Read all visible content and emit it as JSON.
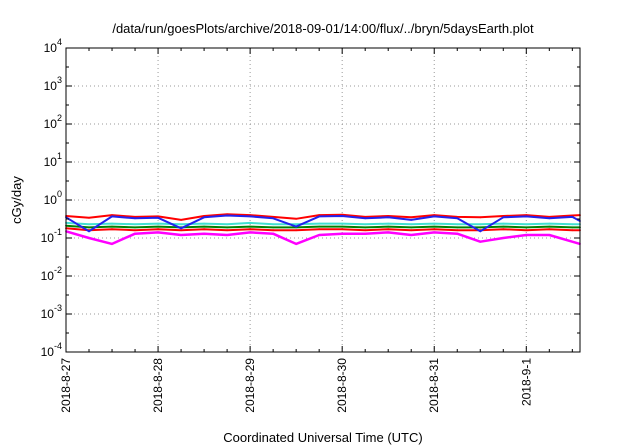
{
  "chart_data": {
    "type": "line",
    "title": "/data/run/goesPlots/archive/2018-09-01/14:00/flux/../bryn/5daysEarth.plot",
    "xlabel": "Coordinated Universal Time (UTC)",
    "ylabel": "cGy/day",
    "yscale": "log",
    "ylim": [
      0.0001,
      10000
    ],
    "xlim": [
      "2018-08-27 00:00",
      "2018-09-01 14:00"
    ],
    "grid": true,
    "legend": "none",
    "x_ticks": [
      "2018-8-27",
      "2018-8-28",
      "2018-8-29",
      "2018-8-30",
      "2018-8-31",
      "2018-9-1"
    ],
    "y_ticks": [
      {
        "base": "10",
        "exp": "-4",
        "value": 0.0001
      },
      {
        "base": "10",
        "exp": "-3",
        "value": 0.001
      },
      {
        "base": "10",
        "exp": "-2",
        "value": 0.01
      },
      {
        "base": "10",
        "exp": "-1",
        "value": 0.1
      },
      {
        "base": "10",
        "exp": "0",
        "value": 1
      },
      {
        "base": "10",
        "exp": "1",
        "value": 10
      },
      {
        "base": "10",
        "exp": "2",
        "value": 100
      },
      {
        "base": "10",
        "exp": "3",
        "value": 1000
      },
      {
        "base": "10",
        "exp": "4",
        "value": 10000
      }
    ],
    "series": [
      {
        "color": "#ff00ff",
        "x": [
          "2018-08-27 00:00",
          "2018-08-27 06:00",
          "2018-08-27 12:00",
          "2018-08-27 18:00",
          "2018-08-28 00:00",
          "2018-08-28 06:00",
          "2018-08-28 12:00",
          "2018-08-28 18:00",
          "2018-08-29 00:00",
          "2018-08-29 06:00",
          "2018-08-29 12:00",
          "2018-08-29 18:00",
          "2018-08-30 00:00",
          "2018-08-30 06:00",
          "2018-08-30 12:00",
          "2018-08-30 18:00",
          "2018-08-31 00:00",
          "2018-08-31 06:00",
          "2018-08-31 12:00",
          "2018-08-31 18:00",
          "2018-09-01 00:00",
          "2018-09-01 06:00",
          "2018-09-01 12:00",
          "2018-09-01 14:00"
        ],
        "values": [
          0.15,
          0.1,
          0.07,
          0.13,
          0.14,
          0.12,
          0.13,
          0.12,
          0.14,
          0.13,
          0.07,
          0.12,
          0.13,
          0.13,
          0.14,
          0.12,
          0.14,
          0.13,
          0.08,
          0.1,
          0.12,
          0.12,
          0.08,
          0.07
        ]
      },
      {
        "color": "#ff0000",
        "x": [
          "2018-08-27 00:00",
          "2018-08-27 06:00",
          "2018-08-27 12:00",
          "2018-08-27 18:00",
          "2018-08-28 00:00",
          "2018-08-28 06:00",
          "2018-08-28 12:00",
          "2018-08-28 18:00",
          "2018-08-29 00:00",
          "2018-08-29 06:00",
          "2018-08-29 12:00",
          "2018-08-29 18:00",
          "2018-08-30 00:00",
          "2018-08-30 06:00",
          "2018-08-30 12:00",
          "2018-08-30 18:00",
          "2018-08-31 00:00",
          "2018-08-31 06:00",
          "2018-08-31 12:00",
          "2018-08-31 18:00",
          "2018-09-01 00:00",
          "2018-09-01 06:00",
          "2018-09-01 12:00",
          "2018-09-01 14:00"
        ],
        "values": [
          0.18,
          0.16,
          0.17,
          0.16,
          0.17,
          0.16,
          0.17,
          0.16,
          0.17,
          0.16,
          0.16,
          0.17,
          0.17,
          0.16,
          0.17,
          0.16,
          0.17,
          0.16,
          0.16,
          0.17,
          0.16,
          0.17,
          0.16,
          0.16
        ]
      },
      {
        "color": "#008000",
        "x": [
          "2018-08-27 00:00",
          "2018-08-27 06:00",
          "2018-08-27 12:00",
          "2018-08-27 18:00",
          "2018-08-28 00:00",
          "2018-08-28 06:00",
          "2018-08-28 12:00",
          "2018-08-28 18:00",
          "2018-08-29 00:00",
          "2018-08-29 06:00",
          "2018-08-29 12:00",
          "2018-08-29 18:00",
          "2018-08-30 00:00",
          "2018-08-30 06:00",
          "2018-08-30 12:00",
          "2018-08-30 18:00",
          "2018-08-31 00:00",
          "2018-08-31 06:00",
          "2018-08-31 12:00",
          "2018-08-31 18:00",
          "2018-09-01 00:00",
          "2018-09-01 06:00",
          "2018-09-01 12:00",
          "2018-09-01 14:00"
        ],
        "values": [
          0.21,
          0.19,
          0.2,
          0.19,
          0.2,
          0.19,
          0.2,
          0.19,
          0.2,
          0.19,
          0.19,
          0.2,
          0.2,
          0.19,
          0.2,
          0.19,
          0.2,
          0.19,
          0.19,
          0.2,
          0.19,
          0.2,
          0.19,
          0.19
        ]
      },
      {
        "color": "#40e0d0",
        "x": [
          "2018-08-27 00:00",
          "2018-08-27 06:00",
          "2018-08-27 12:00",
          "2018-08-27 18:00",
          "2018-08-28 00:00",
          "2018-08-28 06:00",
          "2018-08-28 12:00",
          "2018-08-28 18:00",
          "2018-08-29 00:00",
          "2018-08-29 06:00",
          "2018-08-29 12:00",
          "2018-08-29 18:00",
          "2018-08-30 00:00",
          "2018-08-30 06:00",
          "2018-08-30 12:00",
          "2018-08-30 18:00",
          "2018-08-31 00:00",
          "2018-08-31 06:00",
          "2018-08-31 12:00",
          "2018-08-31 18:00",
          "2018-09-01 00:00",
          "2018-09-01 06:00",
          "2018-09-01 12:00",
          "2018-09-01 14:00"
        ],
        "values": [
          0.25,
          0.23,
          0.24,
          0.23,
          0.24,
          0.23,
          0.24,
          0.23,
          0.25,
          0.23,
          0.23,
          0.24,
          0.24,
          0.23,
          0.24,
          0.23,
          0.24,
          0.23,
          0.23,
          0.24,
          0.23,
          0.24,
          0.23,
          0.23
        ]
      },
      {
        "color": "#ff0000",
        "x": [
          "2018-08-27 00:00",
          "2018-08-27 06:00",
          "2018-08-27 12:00",
          "2018-08-27 18:00",
          "2018-08-28 00:00",
          "2018-08-28 06:00",
          "2018-08-28 12:00",
          "2018-08-28 18:00",
          "2018-08-29 00:00",
          "2018-08-29 06:00",
          "2018-08-29 12:00",
          "2018-08-29 18:00",
          "2018-08-30 00:00",
          "2018-08-30 06:00",
          "2018-08-30 12:00",
          "2018-08-30 18:00",
          "2018-08-31 00:00",
          "2018-08-31 06:00",
          "2018-08-31 12:00",
          "2018-08-31 18:00",
          "2018-09-01 00:00",
          "2018-09-01 06:00",
          "2018-09-01 12:00",
          "2018-09-01 14:00"
        ],
        "values": [
          0.38,
          0.34,
          0.4,
          0.36,
          0.37,
          0.3,
          0.38,
          0.42,
          0.4,
          0.36,
          0.32,
          0.4,
          0.41,
          0.36,
          0.38,
          0.35,
          0.4,
          0.36,
          0.35,
          0.38,
          0.4,
          0.36,
          0.39,
          0.4
        ]
      },
      {
        "color": "#2222ee",
        "x": [
          "2018-08-27 00:00",
          "2018-08-27 06:00",
          "2018-08-27 12:00",
          "2018-08-27 18:00",
          "2018-08-28 00:00",
          "2018-08-28 06:00",
          "2018-08-28 12:00",
          "2018-08-28 18:00",
          "2018-08-29 00:00",
          "2018-08-29 06:00",
          "2018-08-29 12:00",
          "2018-08-29 18:00",
          "2018-08-30 00:00",
          "2018-08-30 06:00",
          "2018-08-30 12:00",
          "2018-08-30 18:00",
          "2018-08-31 00:00",
          "2018-08-31 06:00",
          "2018-08-31 12:00",
          "2018-08-31 18:00",
          "2018-09-01 00:00",
          "2018-09-01 06:00",
          "2018-09-01 12:00",
          "2018-09-01 14:00"
        ],
        "values": [
          0.35,
          0.15,
          0.37,
          0.33,
          0.34,
          0.18,
          0.35,
          0.39,
          0.37,
          0.33,
          0.2,
          0.37,
          0.38,
          0.33,
          0.35,
          0.3,
          0.37,
          0.33,
          0.15,
          0.35,
          0.37,
          0.33,
          0.36,
          0.28
        ]
      }
    ]
  }
}
